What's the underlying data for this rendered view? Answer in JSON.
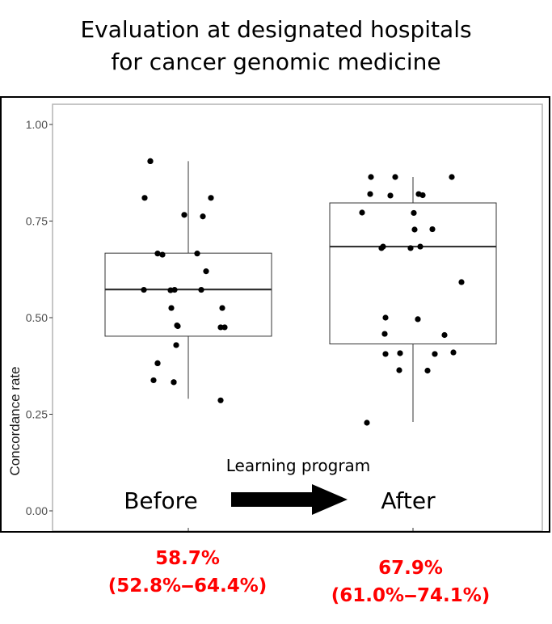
{
  "title_line1": "Evaluation at designated hospitals",
  "title_line2": "for cancer genomic medicine",
  "annotation": {
    "arrow_text": "Learning program",
    "before_label": "Before",
    "after_label": "After"
  },
  "stats": {
    "before_pct": "58.7%",
    "before_ci": "(52.8%‒64.4%)",
    "after_pct": "67.9%",
    "after_ci": "(61.0%‒74.1%)"
  },
  "colors": {
    "stats": "#ff0000",
    "points": "#000000",
    "panel_border": "#b3b3b3"
  },
  "chart_data": {
    "type": "box",
    "ylabel": "Concordance rate",
    "xlabel": "",
    "ylim": [
      0,
      1
    ],
    "yticks": [
      "0.00",
      "0.25",
      "0.50",
      "0.75",
      "1.00"
    ],
    "grid": false,
    "categories": [
      "Before",
      "After"
    ],
    "boxes": [
      {
        "category": "Before",
        "whisker_low": 0.29,
        "q1": 0.452,
        "median": 0.573,
        "q3": 0.667,
        "whisker_high": 0.905
      },
      {
        "category": "After",
        "whisker_low": 0.23,
        "q1": 0.432,
        "median": 0.684,
        "q3": 0.797,
        "whisker_high": 0.864
      }
    ],
    "points": [
      {
        "category": "Before",
        "values": [
          0.905,
          0.905,
          0.81,
          0.81,
          0.766,
          0.762,
          0.666,
          0.666,
          0.663,
          0.62,
          0.572,
          0.572,
          0.571,
          0.572,
          0.525,
          0.525,
          0.48,
          0.478,
          0.475,
          0.475,
          0.429,
          0.382,
          0.382,
          0.338,
          0.333,
          0.333,
          0.286
        ]
      },
      {
        "category": "After",
        "values": [
          0.864,
          0.864,
          0.864,
          0.82,
          0.82,
          0.817,
          0.816,
          0.772,
          0.771,
          0.729,
          0.728,
          0.684,
          0.684,
          0.68,
          0.68,
          0.592,
          0.5,
          0.496,
          0.458,
          0.455,
          0.41,
          0.408,
          0.406,
          0.406,
          0.364,
          0.363,
          0.228
        ]
      }
    ]
  }
}
